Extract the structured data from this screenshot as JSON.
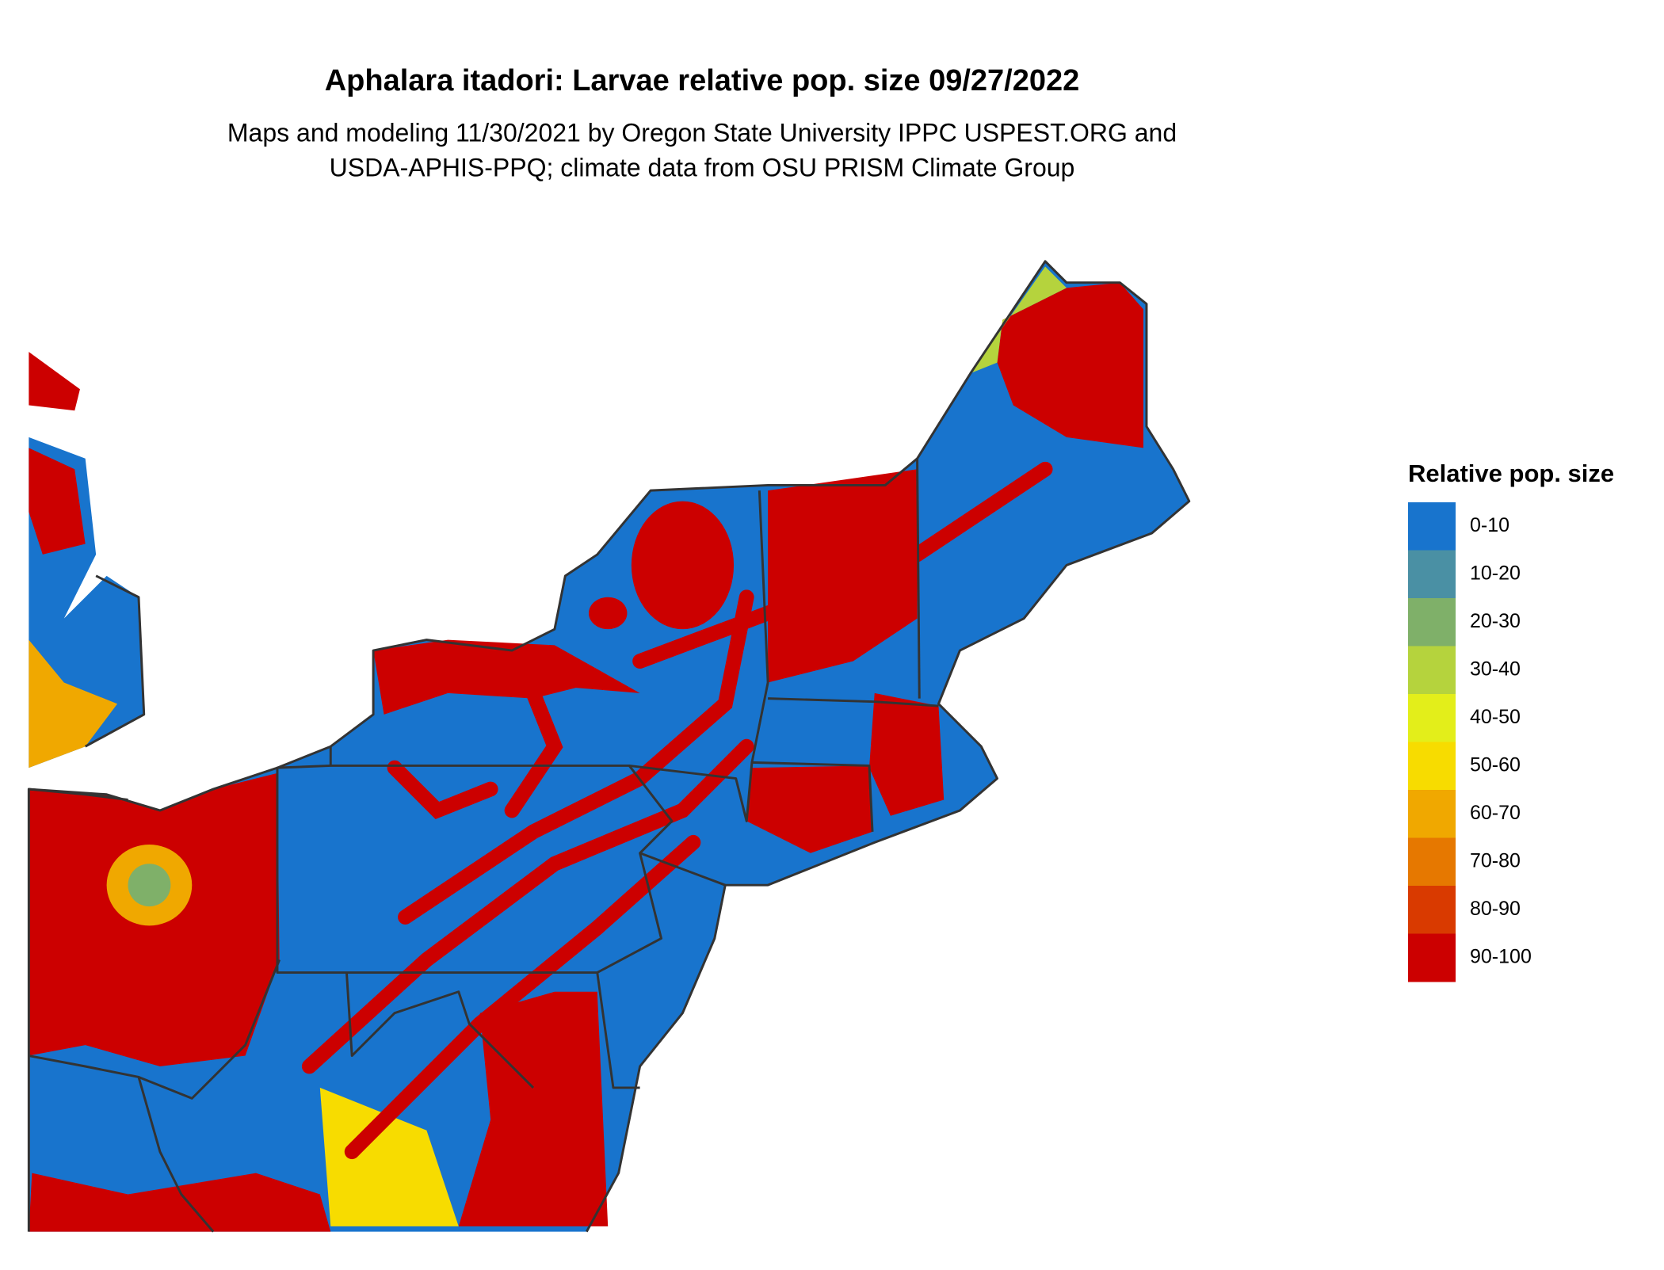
{
  "title": "Aphalara itadori: Larvae relative pop. size 09/27/2022",
  "subtitle": [
    "Maps and modeling 11/30/2021 by Oregon State University IPPC USPEST.ORG and",
    "USDA-APHIS-PPQ; climate data from OSU PRISM Climate Group"
  ],
  "legend": {
    "title": "Relative pop. size",
    "items": [
      {
        "label": "0-10",
        "color": "#1874cd"
      },
      {
        "label": "10-20",
        "color": "#4a90a4"
      },
      {
        "label": "20-30",
        "color": "#7fb069"
      },
      {
        "label": "30-40",
        "color": "#b5d33d"
      },
      {
        "label": "40-50",
        "color": "#e3ee1a"
      },
      {
        "label": "50-60",
        "color": "#f7dc00"
      },
      {
        "label": "60-70",
        "color": "#f0a800"
      },
      {
        "label": "70-80",
        "color": "#e67800"
      },
      {
        "label": "80-90",
        "color": "#d93a00"
      },
      {
        "label": "90-100",
        "color": "#cc0000"
      }
    ]
  }
}
